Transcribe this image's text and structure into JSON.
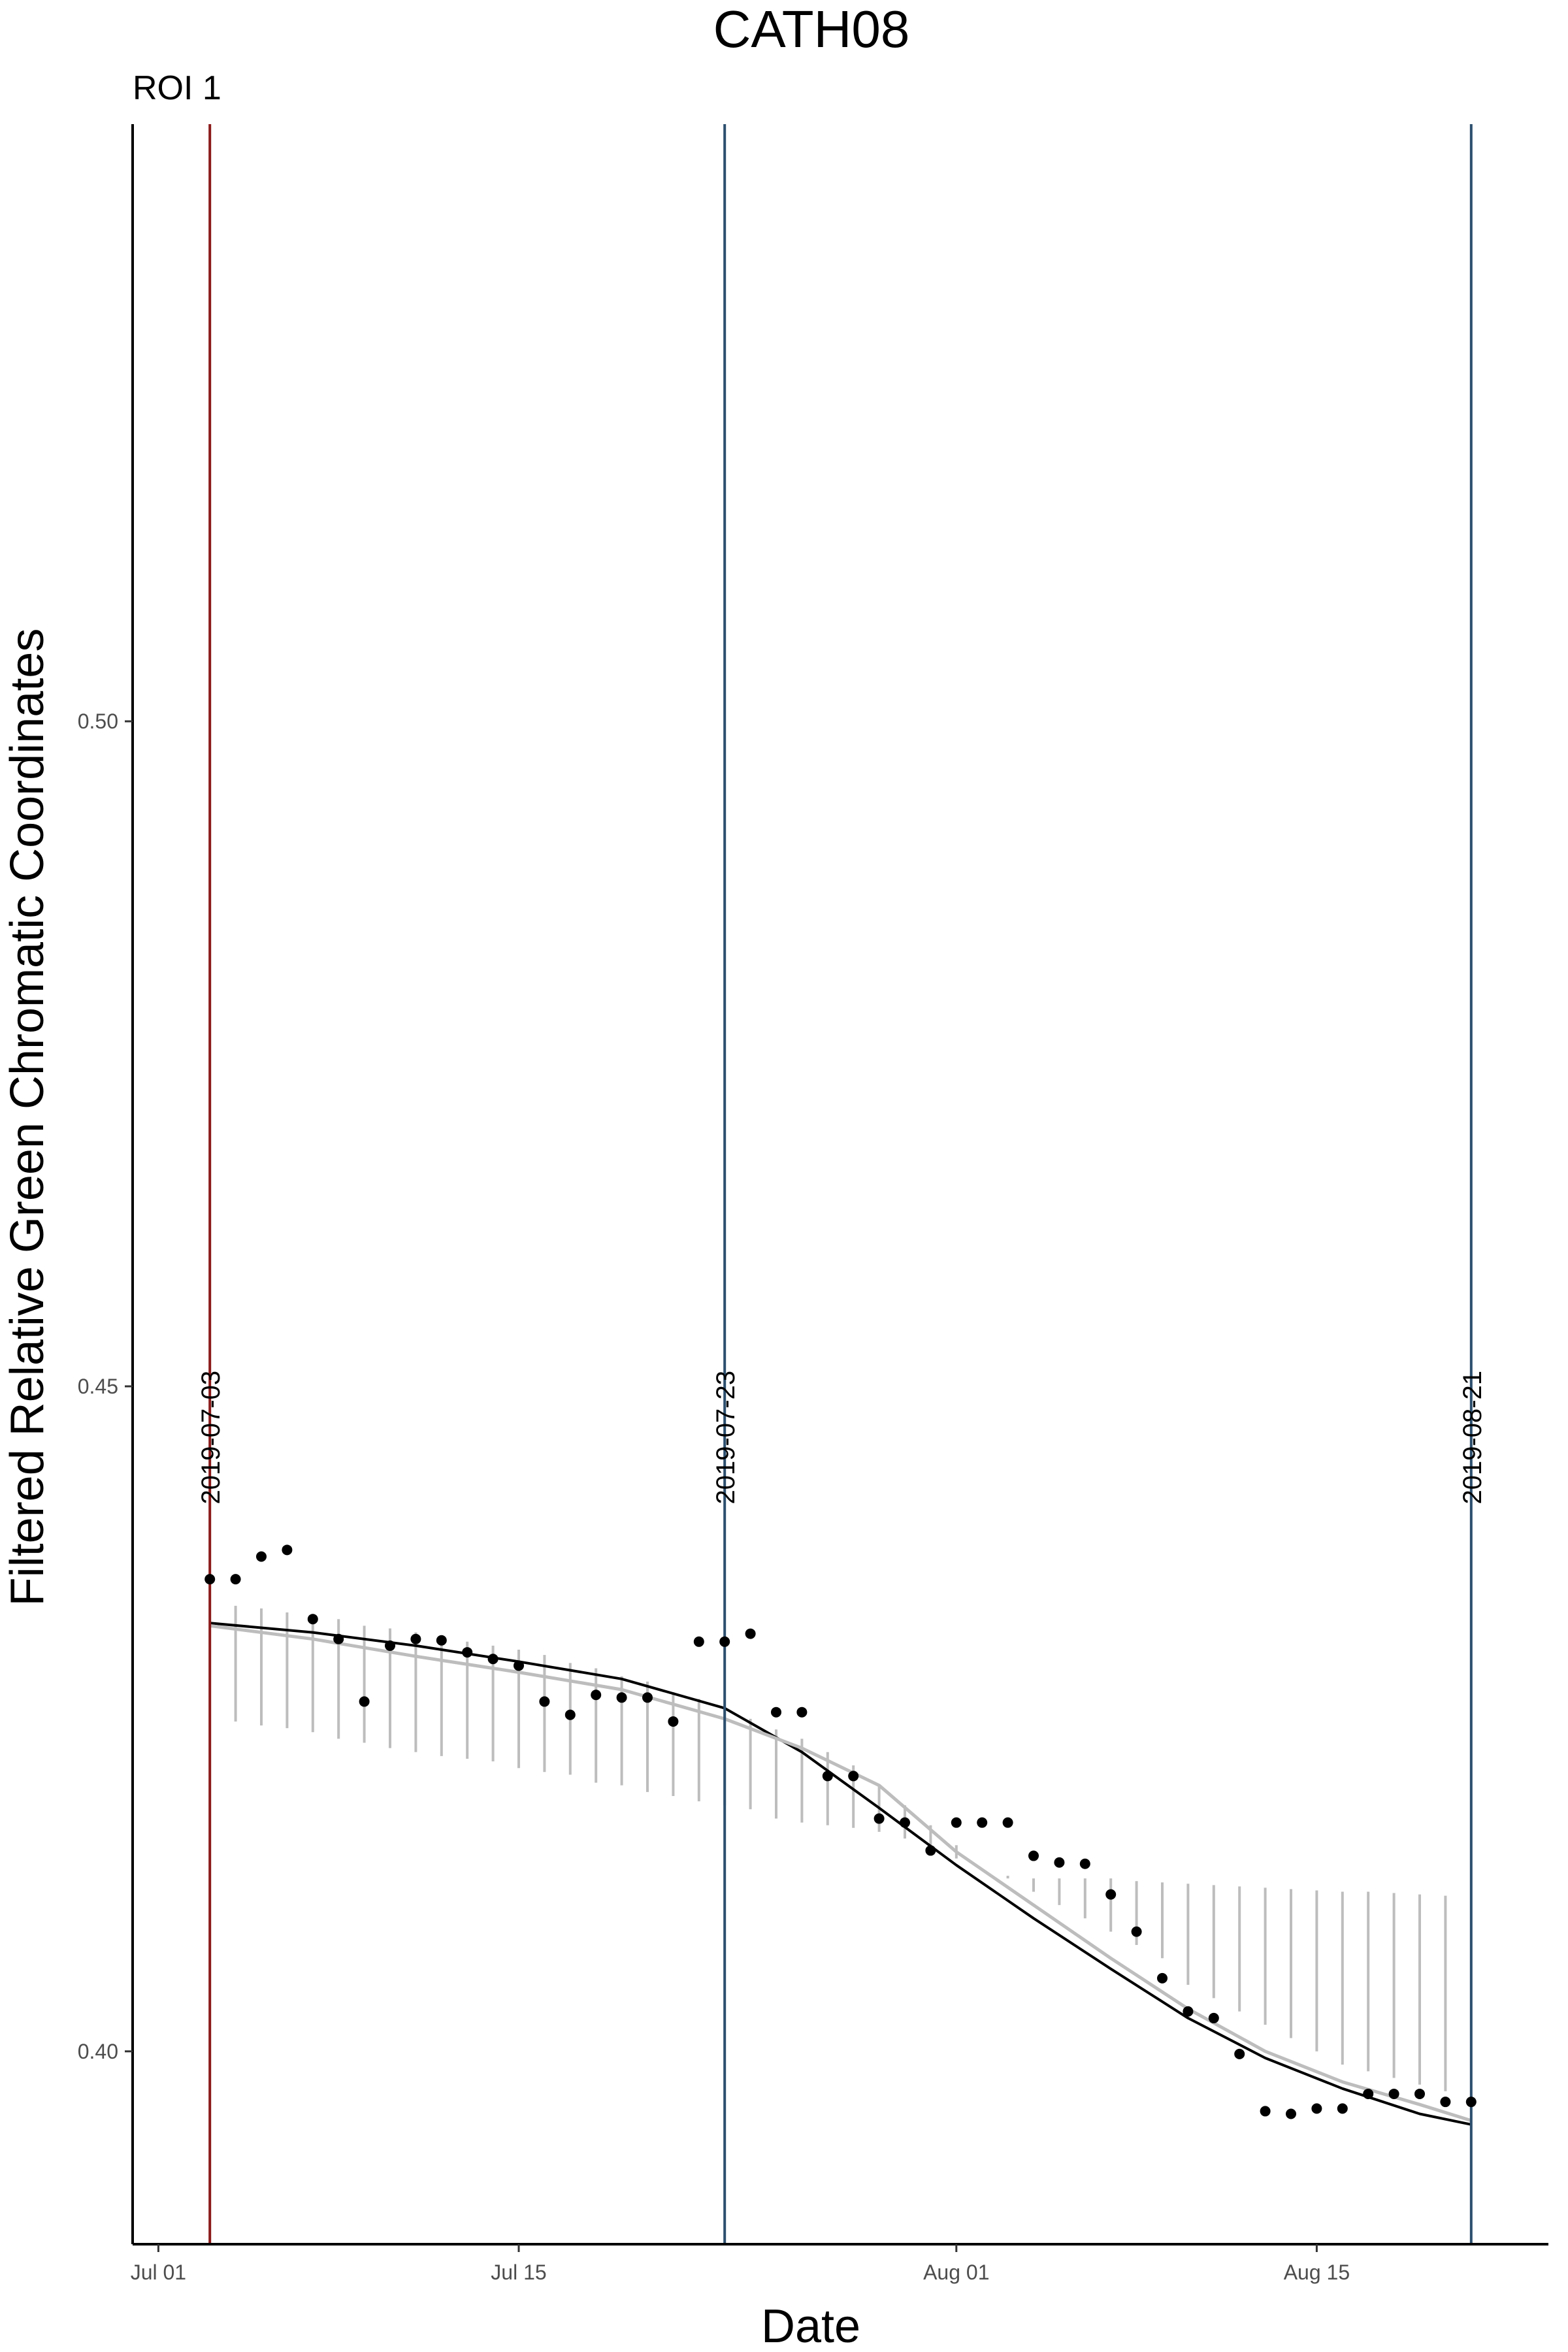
{
  "chart_data": {
    "type": "scatter",
    "title": "CATH08",
    "subtitle": "ROI 1",
    "xlabel": "Date",
    "ylabel": "Filtered Relative Green Chromatic Coordinates",
    "xlim": [
      "2019-06-30",
      "2019-08-24"
    ],
    "ylim": [
      0.3855,
      0.5449
    ],
    "x_ticks": [
      {
        "date": "2019-07-01",
        "label": "Jul 01"
      },
      {
        "date": "2019-07-15",
        "label": "Jul 15"
      },
      {
        "date": "2019-08-01",
        "label": "Aug 01"
      },
      {
        "date": "2019-08-15",
        "label": "Aug 15"
      }
    ],
    "y_ticks": [
      {
        "value": 0.4,
        "label": "0.40"
      },
      {
        "value": 0.45,
        "label": "0.45"
      },
      {
        "value": 0.5,
        "label": "0.50"
      }
    ],
    "grid": false,
    "legend": "none",
    "vertical_lines": [
      {
        "date": "2019-07-03",
        "label": "2019-07-03",
        "color": "#8b1a1a"
      },
      {
        "date": "2019-07-23",
        "label": "2019-07-23",
        "color": "#2c4f6e"
      },
      {
        "date": "2019-08-21",
        "label": "2019-08-21",
        "color": "#2c4f6e"
      }
    ],
    "series": [
      {
        "kind": "points",
        "color": "#000000",
        "x": [
          "2019-07-03",
          "2019-07-04",
          "2019-07-05",
          "2019-07-06",
          "2019-07-07",
          "2019-07-08",
          "2019-07-09",
          "2019-07-10",
          "2019-07-11",
          "2019-07-12",
          "2019-07-13",
          "2019-07-14",
          "2019-07-15",
          "2019-07-16",
          "2019-07-17",
          "2019-07-18",
          "2019-07-19",
          "2019-07-20",
          "2019-07-21",
          "2019-07-22",
          "2019-07-23",
          "2019-07-24",
          "2019-07-25",
          "2019-07-26",
          "2019-07-27",
          "2019-07-28",
          "2019-07-29",
          "2019-07-30",
          "2019-07-31",
          "2019-08-01",
          "2019-08-02",
          "2019-08-03",
          "2019-08-04",
          "2019-08-05",
          "2019-08-06",
          "2019-08-07",
          "2019-08-08",
          "2019-08-09",
          "2019-08-10",
          "2019-08-11",
          "2019-08-12",
          "2019-08-13",
          "2019-08-14",
          "2019-08-15",
          "2019-08-16",
          "2019-08-17",
          "2019-08-18",
          "2019-08-19",
          "2019-08-20",
          "2019-08-21"
        ],
        "y": [
          0.4355,
          0.4355,
          0.4372,
          0.4377,
          0.4325,
          0.431,
          0.4263,
          0.4305,
          0.431,
          0.4309,
          0.43,
          0.4295,
          0.429,
          0.4263,
          0.4253,
          0.4268,
          0.4266,
          0.4266,
          0.4248,
          0.4308,
          0.4308,
          0.4314,
          0.4255,
          0.4255,
          0.4207,
          0.4207,
          0.4175,
          0.4172,
          0.4151,
          0.4172,
          0.4172,
          0.4172,
          0.4147,
          0.4142,
          0.4141,
          0.4118,
          0.409,
          0.4055,
          0.403,
          0.4025,
          0.3998,
          0.3955,
          0.3953,
          0.3957,
          0.3957,
          0.3968,
          0.3968,
          0.3968,
          0.3962,
          0.3962
        ]
      },
      {
        "kind": "line",
        "color": "#000000",
        "x": [
          "2019-07-03",
          "2019-07-07",
          "2019-07-11",
          "2019-07-15",
          "2019-07-19",
          "2019-07-23",
          "2019-07-26",
          "2019-07-29",
          "2019-08-01",
          "2019-08-04",
          "2019-08-07",
          "2019-08-10",
          "2019-08-13",
          "2019-08-16",
          "2019-08-19",
          "2019-08-21"
        ],
        "y": [
          0.4322,
          0.4315,
          0.4305,
          0.4293,
          0.428,
          0.4258,
          0.4225,
          0.4183,
          0.414,
          0.41,
          0.4062,
          0.4025,
          0.3995,
          0.3972,
          0.3953,
          0.3945
        ]
      },
      {
        "kind": "line",
        "color": "#bdbdbd",
        "x": [
          "2019-07-03",
          "2019-07-07",
          "2019-07-11",
          "2019-07-15",
          "2019-07-19",
          "2019-07-23",
          "2019-07-26",
          "2019-07-29",
          "2019-08-01",
          "2019-08-04",
          "2019-08-07",
          "2019-08-10",
          "2019-08-13",
          "2019-08-16",
          "2019-08-19",
          "2019-08-21"
        ],
        "y": [
          0.432,
          0.431,
          0.4297,
          0.4285,
          0.4272,
          0.425,
          0.4228,
          0.42,
          0.415,
          0.411,
          0.407,
          0.4032,
          0.4,
          0.3977,
          0.396,
          0.3948
        ]
      },
      {
        "kind": "error_bars",
        "color": "#bdbdbd",
        "x": [
          "2019-07-04",
          "2019-07-05",
          "2019-07-06",
          "2019-07-07",
          "2019-07-08",
          "2019-07-09",
          "2019-07-10",
          "2019-07-11",
          "2019-07-12",
          "2019-07-13",
          "2019-07-14",
          "2019-07-15",
          "2019-07-16",
          "2019-07-17",
          "2019-07-18",
          "2019-07-19",
          "2019-07-20",
          "2019-07-21",
          "2019-07-22",
          "2019-07-23",
          "2019-07-24",
          "2019-07-25",
          "2019-07-26",
          "2019-07-27",
          "2019-07-28",
          "2019-07-29",
          "2019-07-30",
          "2019-07-31",
          "2019-08-01",
          "2019-08-02",
          "2019-08-03",
          "2019-08-04",
          "2019-08-05",
          "2019-08-06",
          "2019-08-07",
          "2019-08-08",
          "2019-08-09",
          "2019-08-10",
          "2019-08-11",
          "2019-08-12",
          "2019-08-13",
          "2019-08-14",
          "2019-08-15",
          "2019-08-16",
          "2019-08-17",
          "2019-08-18",
          "2019-08-19",
          "2019-08-20"
        ],
        "low": [
          0.4248,
          0.4245,
          0.4243,
          0.424,
          0.4235,
          0.4232,
          0.4228,
          0.4225,
          0.4222,
          0.422,
          0.4218,
          0.4213,
          0.421,
          0.4208,
          0.4202,
          0.42,
          0.4195,
          0.4192,
          0.4188,
          0.4185,
          0.4182,
          0.4175,
          0.4172,
          0.417,
          0.4168,
          0.4165,
          0.416,
          0.415,
          0.4145,
          0.414,
          0.413,
          0.412,
          0.411,
          0.41,
          0.409,
          0.408,
          0.407,
          0.405,
          0.404,
          0.403,
          0.402,
          0.401,
          0.4,
          0.399,
          0.3985,
          0.398,
          0.3975,
          0.397
        ],
        "high": [
          0.4335,
          0.4333,
          0.433,
          0.4328,
          0.4325,
          0.432,
          0.4318,
          0.4315,
          0.4312,
          0.4308,
          0.4305,
          0.4302,
          0.4298,
          0.4292,
          0.4288,
          0.4282,
          0.4278,
          0.427,
          0.4265,
          0.4258,
          0.425,
          0.4242,
          0.4235,
          0.4225,
          0.4215,
          0.42,
          0.4185,
          0.417,
          0.4155,
          0.414,
          0.4132,
          0.413,
          0.413,
          0.413,
          0.413,
          0.4128,
          0.4127,
          0.4126,
          0.4125,
          0.4124,
          0.4123,
          0.4122,
          0.4121,
          0.412,
          0.412,
          0.4119,
          0.4118,
          0.4117
        ]
      }
    ]
  }
}
